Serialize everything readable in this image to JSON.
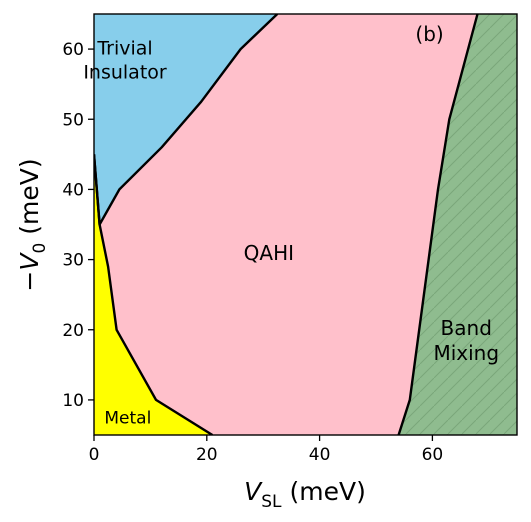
{
  "chart_data": {
    "type": "area",
    "panel_label": "(b)",
    "xlabel_main": "V",
    "xlabel_sub": "SL",
    "xlabel_unit": " (meV)",
    "ylabel_prefix": "−V",
    "ylabel_sub": "0",
    "ylabel_unit": " (meV)",
    "xlim": [
      0,
      75
    ],
    "ylim": [
      5,
      65
    ],
    "xticks": [
      0,
      20,
      40,
      60
    ],
    "yticks": [
      10,
      20,
      30,
      40,
      50,
      60
    ],
    "xtick_labels": [
      "0",
      "20",
      "40",
      "60"
    ],
    "ytick_labels": [
      "10",
      "20",
      "30",
      "40",
      "50",
      "60"
    ],
    "grid": false,
    "legend": "none",
    "regions": [
      {
        "name": "Trivial Insulator",
        "label_lines": [
          "Trivial",
          "Insulator"
        ],
        "color": "#87ceeb",
        "hatch": false,
        "polygon": [
          [
            0,
            65
          ],
          [
            0,
            45
          ],
          [
            1,
            35
          ],
          [
            4.5,
            40
          ],
          [
            12,
            46
          ],
          [
            19,
            52.5
          ],
          [
            26,
            60
          ],
          [
            32.5,
            65
          ]
        ]
      },
      {
        "name": "QAHI",
        "label_lines": [
          "QAHI"
        ],
        "color": "#ffc0cb",
        "hatch": false,
        "polygon": [
          [
            32.5,
            65
          ],
          [
            26,
            60
          ],
          [
            19,
            52.5
          ],
          [
            12,
            46
          ],
          [
            4.5,
            40
          ],
          [
            1,
            35
          ],
          [
            2.5,
            29
          ],
          [
            4,
            20
          ],
          [
            11,
            10
          ],
          [
            21,
            5
          ],
          [
            54,
            5
          ],
          [
            56,
            10
          ],
          [
            58.5,
            25
          ],
          [
            61,
            40
          ],
          [
            63,
            50
          ],
          [
            68,
            65
          ]
        ]
      },
      {
        "name": "Metal",
        "label_lines": [
          "Metal"
        ],
        "color": "#ffff00",
        "hatch": false,
        "polygon": [
          [
            0,
            5
          ],
          [
            0,
            45
          ],
          [
            1,
            35
          ],
          [
            2.5,
            29
          ],
          [
            4,
            20
          ],
          [
            11,
            10
          ],
          [
            21,
            5
          ]
        ]
      },
      {
        "name": "Band Mixing",
        "label_lines": [
          "Band",
          "Mixing"
        ],
        "color": "#8fbc8f",
        "hatch": true,
        "polygon": [
          [
            54,
            5
          ],
          [
            56,
            10
          ],
          [
            58.5,
            25
          ],
          [
            61,
            40
          ],
          [
            63,
            50
          ],
          [
            68,
            65
          ],
          [
            75,
            65
          ],
          [
            75,
            5
          ]
        ]
      }
    ],
    "boundaries": [
      [
        [
          0,
          45
        ],
        [
          1,
          35
        ],
        [
          4.5,
          40
        ],
        [
          12,
          46
        ],
        [
          19,
          52.5
        ],
        [
          26,
          60
        ],
        [
          32.5,
          65
        ]
      ],
      [
        [
          0,
          45
        ],
        [
          1,
          35
        ],
        [
          2.5,
          29
        ],
        [
          4,
          20
        ],
        [
          11,
          10
        ],
        [
          21,
          5
        ]
      ],
      [
        [
          54,
          5
        ],
        [
          56,
          10
        ],
        [
          58.5,
          25
        ],
        [
          61,
          40
        ],
        [
          63,
          50
        ],
        [
          68,
          65
        ]
      ]
    ],
    "region_labels": [
      {
        "region": "Trivial Insulator",
        "lines": [
          "Trivial",
          "Insulator"
        ],
        "x": 5.5,
        "y": 58.5,
        "size": 19
      },
      {
        "region": "QAHI",
        "lines": [
          "QAHI"
        ],
        "x": 31,
        "y": 31,
        "size": 20
      },
      {
        "region": "Metal",
        "lines": [
          "Metal"
        ],
        "x": 6,
        "y": 7.5,
        "size": 17
      },
      {
        "region": "Band Mixing",
        "lines": [
          "Band",
          "Mixing"
        ],
        "x": 66,
        "y": 18.5,
        "size": 20
      },
      {
        "region": "panel",
        "lines": [
          "(b)"
        ],
        "x": 59.5,
        "y": 62.2,
        "size": 20
      }
    ]
  }
}
